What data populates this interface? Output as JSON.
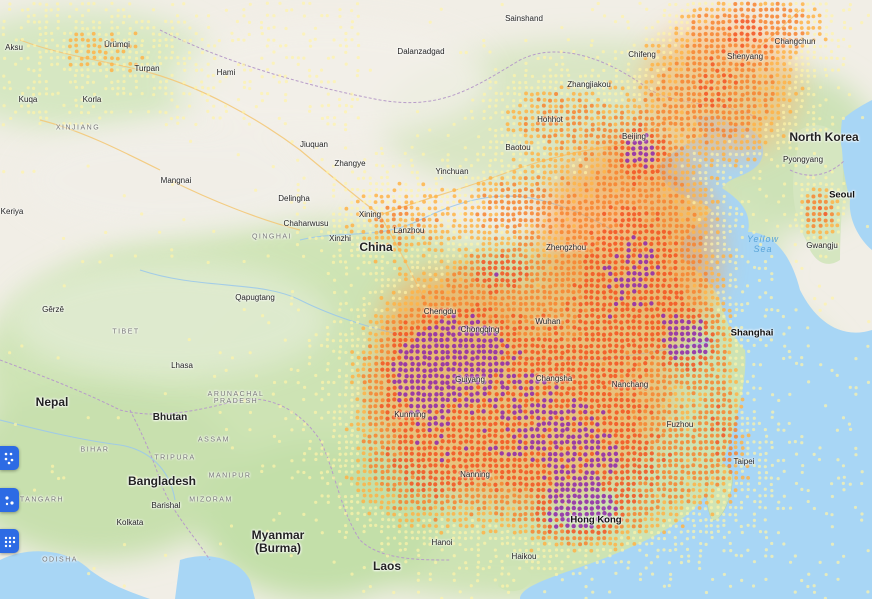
{
  "map": {
    "labels": {
      "countries": [
        {
          "id": "china",
          "text": "China"
        },
        {
          "id": "north-korea",
          "text": "North Korea"
        },
        {
          "id": "nepal",
          "text": "Nepal"
        },
        {
          "id": "bhutan",
          "text": "Bhutan"
        },
        {
          "id": "bangladesh",
          "text": "Bangladesh"
        },
        {
          "id": "myanmar",
          "text": "Myanmar\n(Burma)"
        },
        {
          "id": "laos",
          "text": "Laos"
        }
      ],
      "regions": [
        {
          "id": "xinjiang",
          "text": "XINJIANG"
        },
        {
          "id": "qinghai",
          "text": "QINGHAI"
        },
        {
          "id": "tibet",
          "text": "TIBET"
        },
        {
          "id": "arunachal",
          "text": "ARUNACHAL PRADESH"
        },
        {
          "id": "assam",
          "text": "ASSAM"
        },
        {
          "id": "bihar",
          "text": "BIHAR"
        },
        {
          "id": "tripura",
          "text": "TRIPURA"
        },
        {
          "id": "mizoram",
          "text": "MIZORAM"
        },
        {
          "id": "manipur",
          "text": "MANIPUR"
        },
        {
          "id": "odisha",
          "text": "ODISHA"
        },
        {
          "id": "tangarh",
          "text": "TANGARH"
        }
      ],
      "water": [
        {
          "id": "yellow-sea",
          "text": "Yellow\nSea"
        }
      ],
      "cities_major": [
        {
          "id": "shanghai",
          "text": "Shanghai"
        },
        {
          "id": "seoul",
          "text": "Seoul"
        },
        {
          "id": "hong-kong",
          "text": "Hong Kong"
        }
      ],
      "cities": [
        {
          "id": "sainshand",
          "text": "Sainshand"
        },
        {
          "id": "dalanzadgad",
          "text": "Dalanzadgad"
        },
        {
          "id": "urumqi",
          "text": "Ürümqi"
        },
        {
          "id": "turpan",
          "text": "Turpan"
        },
        {
          "id": "hami",
          "text": "Hami"
        },
        {
          "id": "korla",
          "text": "Korla"
        },
        {
          "id": "kuqa",
          "text": "Kuqa"
        },
        {
          "id": "aksu",
          "text": "Aksu"
        },
        {
          "id": "mangnai",
          "text": "Mangnai"
        },
        {
          "id": "keriya",
          "text": "Keriya"
        },
        {
          "id": "delingha",
          "text": "Delingha"
        },
        {
          "id": "chaharwusu",
          "text": "Chaharwusu"
        },
        {
          "id": "jiuquan",
          "text": "Jiuquan"
        },
        {
          "id": "zhangye",
          "text": "Zhangye"
        },
        {
          "id": "xining",
          "text": "Xining"
        },
        {
          "id": "lanzhou",
          "text": "Lanzhou"
        },
        {
          "id": "xinzhi",
          "text": "Xinzhi"
        },
        {
          "id": "yinchuan",
          "text": "Yinchuan"
        },
        {
          "id": "baotou",
          "text": "Baotou"
        },
        {
          "id": "hohhot",
          "text": "Hohhot"
        },
        {
          "id": "beijing-area",
          "text": "Beijing"
        },
        {
          "id": "qapugtang",
          "text": "Qapugtang"
        },
        {
          "id": "gerze",
          "text": "Gêrzê"
        },
        {
          "id": "lhasa",
          "text": "Lhasa"
        },
        {
          "id": "pyongyang",
          "text": "Pyongyang"
        },
        {
          "id": "gwangju",
          "text": "Gwangju"
        },
        {
          "id": "changchun",
          "text": "Changchun"
        },
        {
          "id": "shenyang",
          "text": "Shenyang"
        },
        {
          "id": "chifeng",
          "text": "Chifeng"
        },
        {
          "id": "zhangjiakou",
          "text": "Zhangjiakou"
        },
        {
          "id": "taipei",
          "text": "Taipei"
        },
        {
          "id": "haikou",
          "text": "Haikou"
        },
        {
          "id": "barishal",
          "text": "Barishal"
        },
        {
          "id": "kolkata",
          "text": "Kolkata"
        },
        {
          "id": "zhengzhou",
          "text": "Zhengzhou"
        },
        {
          "id": "wuhan",
          "text": "Wuhan"
        },
        {
          "id": "changsha",
          "text": "Changsha"
        },
        {
          "id": "chengdu",
          "text": "Chengdu"
        },
        {
          "id": "chongqing",
          "text": "Chongqing"
        },
        {
          "id": "kunming",
          "text": "Kunming"
        },
        {
          "id": "nanning",
          "text": "Nanning"
        },
        {
          "id": "guiyang",
          "text": "Guiyang"
        },
        {
          "id": "fuzhou",
          "text": "Fuzhou"
        },
        {
          "id": "nanchang",
          "text": "Nanchang"
        },
        {
          "id": "hanoi",
          "text": "Hanoi"
        }
      ]
    },
    "controls": [
      {
        "id": "layer-toggle-1",
        "icon": "heatmap-dots-icon"
      },
      {
        "id": "layer-toggle-2",
        "icon": "points-icon"
      },
      {
        "id": "layer-toggle-3",
        "icon": "grid-dots-icon"
      }
    ],
    "colors": {
      "land": "#f2efe8",
      "vegetation": "#cfe3b9",
      "water": "#a8d6f5",
      "border": "#b79cc9",
      "road": "#f4c979",
      "heat_low": "#fff3a8",
      "heat_mid": "#ffb347",
      "heat_high": "#f4511e",
      "heat_peak": "#8e24aa",
      "control_blue": "#2d6be4"
    }
  }
}
